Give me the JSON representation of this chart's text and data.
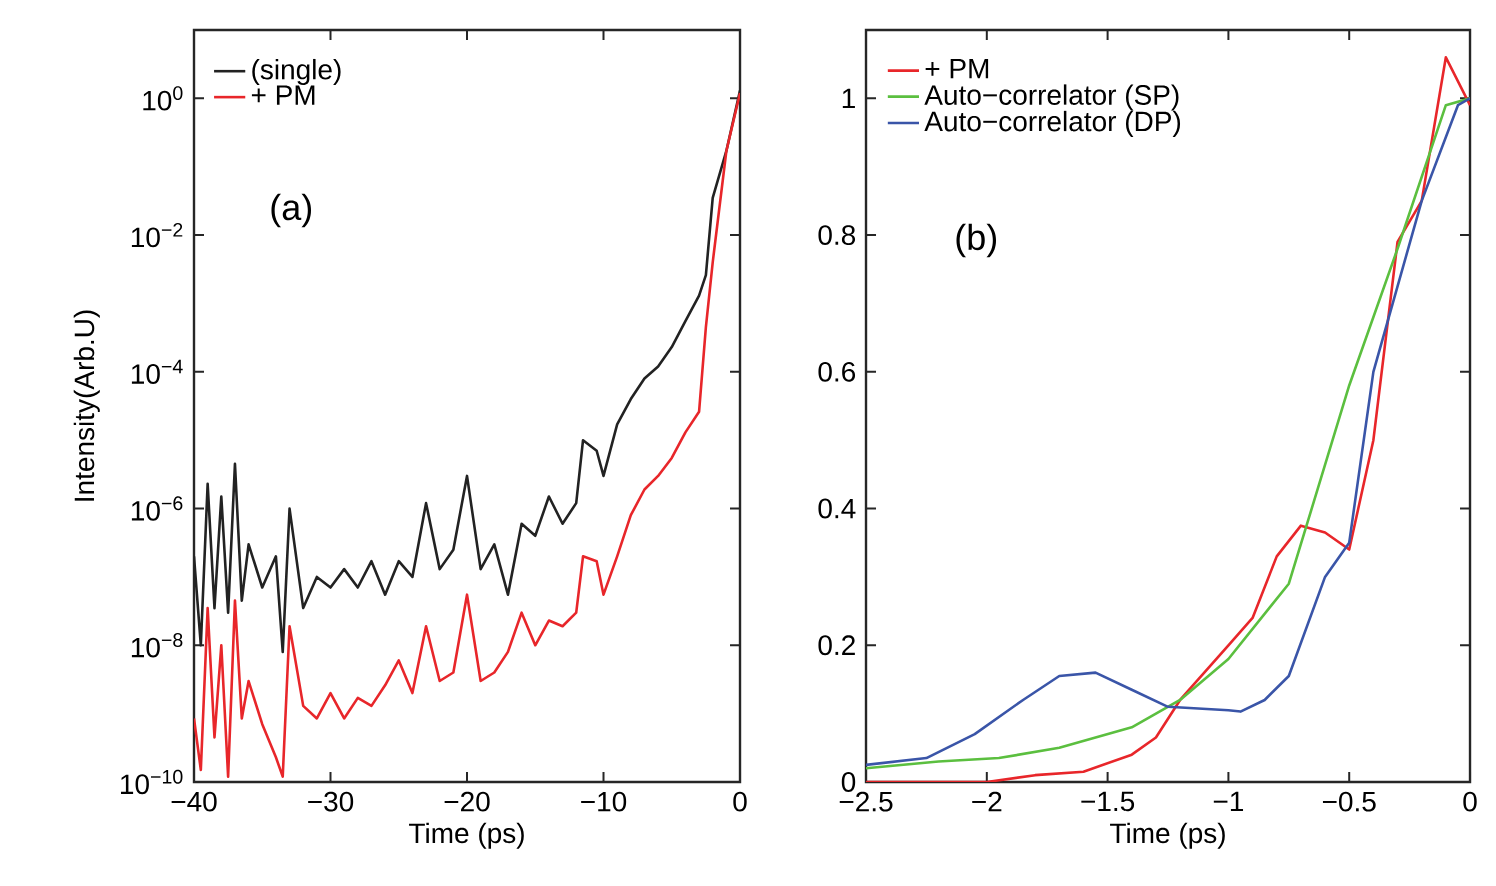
{
  "chart_data": [
    {
      "type": "line",
      "log": "y",
      "xlabel": "Time (ps)",
      "ylabel": "Intensity(Arb.U)",
      "annotations": [
        "(a)"
      ],
      "legend": "top left",
      "xlim": [
        -40,
        0
      ],
      "ylim": [
        1e-10,
        10
      ],
      "xticks": [
        {
          "value": -40,
          "label": "−40"
        },
        {
          "value": -30,
          "label": "−30"
        },
        {
          "value": -20,
          "label": "−20"
        },
        {
          "value": -10,
          "label": "−10"
        },
        0
      ],
      "yticks": [
        {
          "value": 1e-10,
          "label": "10$^{−10}$"
        },
        {
          "value": 1e-08,
          "label": "10$^{−8}$"
        },
        {
          "value": 1e-06,
          "label": "10$^{−6}$"
        },
        {
          "value": 0.0001,
          "label": "10$^{−4}$"
        },
        {
          "value": 0.01,
          "label": "10$^{−2}$"
        },
        {
          "value": 1,
          "label": "10$^{0}$"
        }
      ],
      "series": [
        {
          "name": "(single)",
          "color": "#222222",
          "x": [
            -40,
            -39.5,
            -39,
            -38.5,
            -38,
            -37.5,
            -37,
            -36.5,
            -36,
            -35,
            -34,
            -33.5,
            -33,
            -32,
            -31,
            -30,
            -29,
            -28,
            -27,
            -26,
            -25,
            -24,
            -23,
            -22,
            -21,
            -20,
            -19,
            -18,
            -17,
            -16,
            -15,
            -14,
            -13,
            -12,
            -11.5,
            -10.5,
            -10,
            -9,
            -8,
            -7,
            -6,
            -5,
            -4,
            -3,
            -2.5,
            -2,
            -1,
            0
          ],
          "values": [
            2e-07,
            1e-08,
            2.3e-06,
            3.5e-08,
            1.5e-06,
            3e-08,
            4.5e-06,
            4.5e-08,
            3e-07,
            7e-08,
            2e-07,
            8e-09,
            1e-06,
            3.5e-08,
            1e-07,
            7e-08,
            1.3e-07,
            7e-08,
            1.7e-07,
            5.5e-08,
            1.7e-07,
            1e-07,
            1.2e-06,
            1.3e-07,
            2.5e-07,
            3e-06,
            1.3e-07,
            3e-07,
            5.5e-08,
            6e-07,
            4e-07,
            1.5e-06,
            6e-07,
            1.2e-06,
            1e-05,
            7e-06,
            3e-06,
            1.7e-05,
            4e-05,
            8e-05,
            0.00012,
            0.00023,
            0.00055,
            0.0013,
            0.0026,
            0.035,
            0.17,
            1.3
          ]
        },
        {
          "name": "+ PM",
          "color": "#e8262a",
          "x": [
            -40,
            -39.5,
            -39,
            -38.5,
            -38,
            -37.5,
            -37,
            -36.5,
            -36,
            -35,
            -34,
            -33.5,
            -33,
            -32,
            -31,
            -30,
            -29,
            -28,
            -27,
            -26,
            -25,
            -24,
            -23,
            -22,
            -21,
            -20,
            -19,
            -18,
            -17,
            -16,
            -15,
            -14,
            -13,
            -12,
            -11.5,
            -10.5,
            -10,
            -9,
            -8,
            -7,
            -6,
            -5,
            -4,
            -3,
            -2.5,
            -2,
            -1,
            0
          ],
          "values": [
            8.5e-10,
            1.5e-10,
            3.5e-08,
            4.5e-10,
            1e-08,
            1.2e-10,
            4.5e-08,
            8.5e-10,
            3e-09,
            7e-10,
            2.3e-10,
            1.2e-10,
            1.9e-08,
            1.3e-09,
            8.5e-10,
            2e-09,
            8.5e-10,
            1.7e-09,
            1.3e-09,
            2.6e-09,
            6e-09,
            2e-09,
            1.9e-08,
            3e-09,
            4e-09,
            5.5e-08,
            3e-09,
            4e-09,
            8e-09,
            3e-08,
            1e-08,
            2.3e-08,
            1.9e-08,
            3e-08,
            2e-07,
            1.7e-07,
            5.5e-08,
            2e-07,
            8e-07,
            1.9e-06,
            3e-06,
            5.5e-06,
            1.3e-05,
            2.6e-05,
            0.00045,
            0.004,
            0.17,
            1.2
          ]
        }
      ]
    },
    {
      "type": "line",
      "xlabel": "Time (ps)",
      "annotations": [
        "(b)"
      ],
      "legend": "top left",
      "xlim": [
        -2.5,
        0
      ],
      "ylim": [
        0,
        1.1
      ],
      "xticks": [
        {
          "value": -2.5,
          "label": "−2.5"
        },
        {
          "value": -2,
          "label": "−2"
        },
        {
          "value": -1.5,
          "label": "−1.5"
        },
        {
          "value": -1,
          "label": "−1"
        },
        {
          "value": -0.5,
          "label": "−0.5"
        },
        0
      ],
      "yticks": [
        0,
        0.2,
        0.4,
        0.6,
        0.8,
        1
      ],
      "series": [
        {
          "name": "+ PM",
          "color": "#e8262a",
          "x": [
            -2.5,
            -2,
            -1.8,
            -1.6,
            -1.4,
            -1.3,
            -1.2,
            -1,
            -0.9,
            -0.8,
            -0.7,
            -0.6,
            -0.5,
            -0.4,
            -0.3,
            -0.2,
            -0.1,
            0
          ],
          "values": [
            0,
            0,
            0.01,
            0.015,
            0.04,
            0.065,
            0.12,
            0.2,
            0.24,
            0.33,
            0.375,
            0.365,
            0.34,
            0.5,
            0.79,
            0.85,
            1.06,
            0.99
          ]
        },
        {
          "name": "Auto−correlator (SP)",
          "color": "#5bbf3f",
          "x": [
            -2.5,
            -2.2,
            -1.95,
            -1.7,
            -1.4,
            -1.2,
            -1,
            -0.75,
            -0.5,
            -0.3,
            -0.1,
            0
          ],
          "values": [
            0.02,
            0.03,
            0.035,
            0.05,
            0.08,
            0.12,
            0.18,
            0.29,
            0.58,
            0.78,
            0.99,
            1.0
          ]
        },
        {
          "name": "Auto−correlator (DP)",
          "color": "#3a55a8",
          "x": [
            -2.5,
            -2.25,
            -2.05,
            -1.85,
            -1.7,
            -1.55,
            -1.4,
            -1.25,
            -1,
            -0.95,
            -0.85,
            -0.75,
            -0.6,
            -0.5,
            -0.4,
            -0.2,
            -0.05,
            0
          ],
          "values": [
            0.025,
            0.035,
            0.07,
            0.12,
            0.155,
            0.16,
            0.135,
            0.11,
            0.105,
            0.103,
            0.12,
            0.155,
            0.3,
            0.35,
            0.6,
            0.85,
            0.99,
            1.0
          ]
        }
      ]
    }
  ]
}
